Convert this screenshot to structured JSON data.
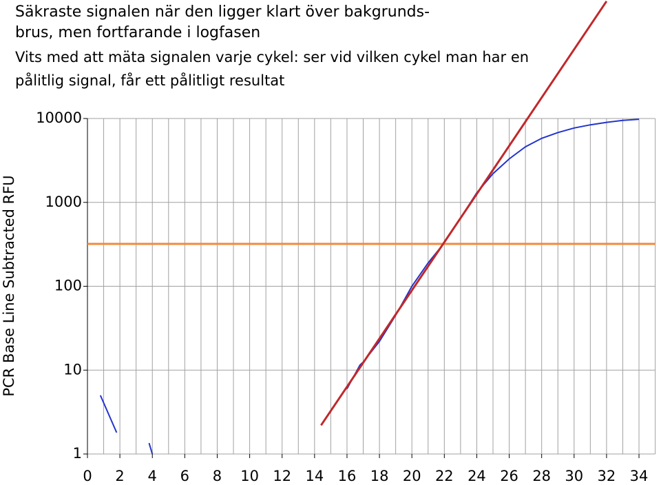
{
  "chart_data": {
    "type": "line",
    "title_lines": [
      "Säkraste signalen när den ligger klart över bakgrunds-",
      "brus, men fortfarande i logfasen",
      "Vits med att mäta signalen varje cykel: ser vid vilken cykel  man har en",
      "pålitlig signal, får ett pålitligt resultat"
    ],
    "ylabel": "PCR Base Line Subtracted RFU",
    "log_y": true,
    "xlim": [
      0,
      35
    ],
    "ylim": [
      1,
      10000
    ],
    "xticks": [
      0,
      2,
      4,
      6,
      8,
      10,
      12,
      14,
      16,
      18,
      20,
      22,
      24,
      26,
      28,
      30,
      32,
      34
    ],
    "yticks": [
      1,
      10,
      100,
      1000,
      10000
    ],
    "xgrid": [
      1,
      2,
      3,
      4,
      5,
      6,
      7,
      8,
      9,
      10,
      11,
      12,
      13,
      14,
      15,
      16,
      17,
      18,
      19,
      20,
      21,
      22,
      23,
      24,
      25,
      26,
      27,
      28,
      29,
      30,
      31,
      32,
      33,
      34,
      35
    ],
    "grid": true,
    "series": [
      {
        "color": "#2233cc",
        "x": [
          0.8,
          1.8,
          2.8,
          3.8,
          4.0,
          10,
          16,
          16.5,
          16.8,
          17,
          18,
          19,
          20,
          21,
          22,
          23,
          24,
          25,
          26,
          27,
          28,
          29,
          30,
          31,
          32,
          33,
          34
        ],
        "values": [
          5,
          1.8,
          null,
          1.35,
          1.0,
          null,
          6,
          9,
          11.5,
          12.5,
          22,
          45,
          100,
          190,
          330,
          650,
          1300,
          2200,
          3300,
          4600,
          5800,
          6800,
          7700,
          8400,
          9000,
          9500,
          9800
        ]
      }
    ],
    "threshold": {
      "value": 320,
      "color": "#f08a3c"
    },
    "fit_line": {
      "x": [
        14.4,
        32
      ],
      "values": [
        2.2,
        250000
      ],
      "color": "#c0282a"
    }
  }
}
